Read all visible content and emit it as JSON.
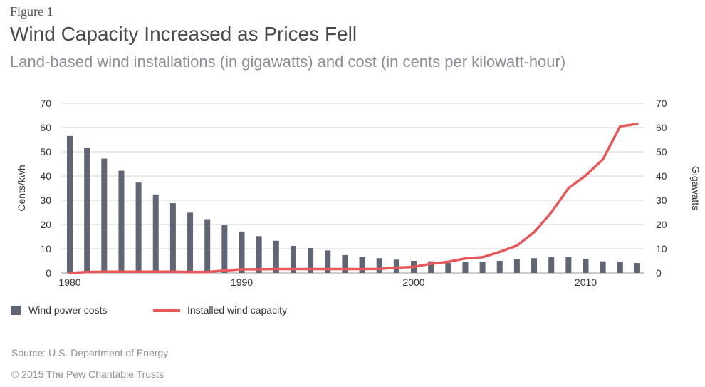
{
  "header": {
    "figure_label": "Figure 1",
    "title": "Wind Capacity Increased as Prices Fell",
    "subtitle": "Land-based wind installations (in gigawatts) and cost (in cents per kilowatt-hour)"
  },
  "chart_data": {
    "type": "bar",
    "title": "Wind Capacity Increased as Prices Fell",
    "subtitle": "Land-based wind installations (in gigawatts) and cost (in cents per kilowatt-hour)",
    "xlabel": "",
    "ylabel_left": "Cents/kwh",
    "ylabel_right": "Gigawatts",
    "ylim_left": [
      0,
      70
    ],
    "ylim_right": [
      0,
      70
    ],
    "yticks": [
      0,
      10,
      20,
      30,
      40,
      50,
      60,
      70
    ],
    "xticks": [
      1980,
      1990,
      2000,
      2010
    ],
    "grid": true,
    "legend_position": "bottom-left",
    "x": [
      1980,
      1981,
      1982,
      1983,
      1984,
      1985,
      1986,
      1987,
      1988,
      1989,
      1990,
      1991,
      1992,
      1993,
      1994,
      1995,
      1996,
      1997,
      1998,
      1999,
      2000,
      2001,
      2002,
      2003,
      2004,
      2005,
      2006,
      2007,
      2008,
      2009,
      2010,
      2011,
      2012,
      2013
    ],
    "series": [
      {
        "name": "Wind power costs",
        "type": "bar",
        "axis": "left",
        "color": "#5f6573",
        "values": [
          56.5,
          51.7,
          47.2,
          42.2,
          37.3,
          32.4,
          28.8,
          24.9,
          22.2,
          19.7,
          17.1,
          15.2,
          13.3,
          11.2,
          10.3,
          9.3,
          7.4,
          6.6,
          6.1,
          5.5,
          5.0,
          4.8,
          4.1,
          4.7,
          4.7,
          5.0,
          5.6,
          6.1,
          6.5,
          6.6,
          5.8,
          4.8,
          4.5,
          4.1
        ]
      },
      {
        "name": "Installed wind capacity",
        "type": "line",
        "axis": "right",
        "color": "#e8575a",
        "values": [
          0.0,
          0.4,
          0.5,
          0.5,
          0.5,
          0.5,
          0.5,
          0.4,
          0.4,
          1.0,
          1.5,
          1.5,
          1.6,
          1.6,
          1.6,
          1.6,
          1.6,
          1.6,
          1.7,
          2.2,
          2.5,
          3.8,
          4.6,
          6.0,
          6.5,
          8.7,
          11.3,
          16.8,
          25.0,
          35.0,
          40.2,
          46.9,
          60.5,
          61.5
        ]
      }
    ]
  },
  "footer": {
    "source": "Source: U.S. Department of Energy",
    "copyright": "© 2015 The Pew Charitable Trusts"
  }
}
